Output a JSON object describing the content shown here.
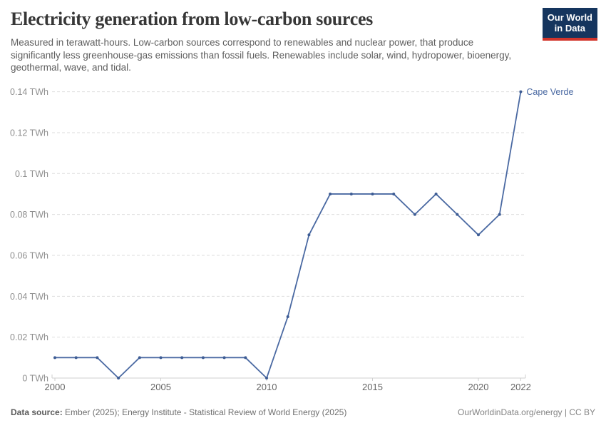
{
  "header": {
    "title": "Electricity generation from low-carbon sources",
    "logo": {
      "line1": "Our World",
      "line2": "in Data"
    }
  },
  "subtitle": "Measured in terawatt-hours. Low-carbon sources correspond to renewables and nuclear power, that produce significantly less greenhouse-gas emissions than fossil fuels. Renewables include solar, wind, hydropower, bioenergy, geothermal, wave, and tidal.",
  "chart_data": {
    "type": "line",
    "title": "Electricity generation from low-carbon sources",
    "unit": "TWh",
    "xlabel": "",
    "ylabel": "",
    "x": [
      2000,
      2001,
      2002,
      2003,
      2004,
      2005,
      2006,
      2007,
      2008,
      2009,
      2010,
      2011,
      2012,
      2013,
      2014,
      2015,
      2016,
      2017,
      2018,
      2019,
      2020,
      2021,
      2022
    ],
    "series": [
      {
        "name": "Cape Verde",
        "values": [
          0.01,
          0.01,
          0.01,
          0,
          0.01,
          0.01,
          0.01,
          0.01,
          0.01,
          0.01,
          0,
          0.03,
          0.07,
          0.09,
          0.09,
          0.09,
          0.09,
          0.08,
          0.09,
          0.08,
          0.07,
          0.08,
          0.14
        ]
      }
    ],
    "ylim": [
      0,
      0.14
    ],
    "yticks": [
      0,
      0.02,
      0.04,
      0.06,
      0.08,
      0.1,
      0.12,
      0.14
    ],
    "ytick_labels": [
      "0 TWh",
      "0.02 TWh",
      "0.04 TWh",
      "0.06 TWh",
      "0.08 TWh",
      "0.1 TWh",
      "0.12 TWh",
      "0.14 TWh"
    ],
    "xticks": [
      2000,
      2005,
      2010,
      2015,
      2020,
      2022
    ],
    "xtick_labels": [
      "2000",
      "2005",
      "2010",
      "2015",
      "2020",
      "2022"
    ],
    "grid": true,
    "legend_position": "end-of-line",
    "end_label": "Cape Verde"
  },
  "footer": {
    "source_label": "Data source:",
    "source_text": "Ember (2025); Energy Institute - Statistical Review of World Energy (2025)",
    "rights": "OurWorldinData.org/energy | CC BY"
  },
  "colors": {
    "line": "#4a69a2",
    "marker": "#3d5c94",
    "end_label_text": "#4a69a2",
    "grid": "#dedede",
    "axis": "#cfcfcf",
    "ytick_text": "#8f8f8f",
    "xtick_text": "#666666",
    "logo_navy": "#15355e",
    "logo_red": "#d1342b"
  }
}
